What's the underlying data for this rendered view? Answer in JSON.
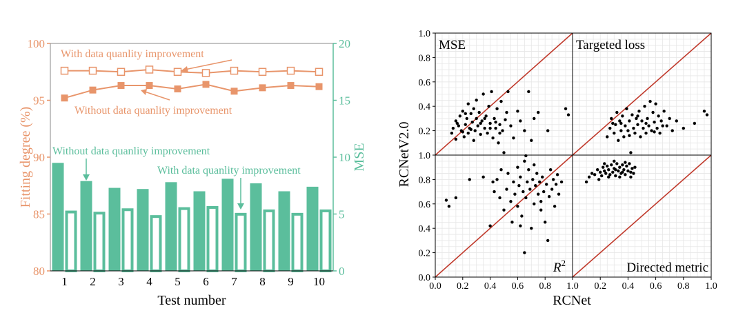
{
  "colors": {
    "orange": "#E8956B",
    "teal": "#5BBE9C",
    "black": "#000000",
    "red": "#C0392B",
    "grid": "#E6E6E6"
  },
  "chart_data": [
    {
      "type": "bar",
      "xlabel": "Test number",
      "ylabel_left": "Fitting degree (%)",
      "ylabel_right": "MSE",
      "categories": [
        "1",
        "2",
        "3",
        "4",
        "5",
        "6",
        "7",
        "8",
        "9",
        "10"
      ],
      "ylim_left": [
        80,
        100
      ],
      "ylim_right": [
        0,
        20
      ],
      "yticks_left": [
        "80",
        "85",
        "90",
        "95",
        "100"
      ],
      "yticks_right": [
        "0",
        "5",
        "10",
        "15",
        "20"
      ],
      "line_series": [
        {
          "name": "With data quanlity improvement",
          "axis": "left",
          "marker": "hollow-square",
          "values": [
            97.6,
            97.6,
            97.5,
            97.7,
            97.5,
            97.4,
            97.6,
            97.5,
            97.6,
            97.5
          ]
        },
        {
          "name": "Without data quanlity improvement",
          "axis": "left",
          "marker": "filled-square",
          "values": [
            95.2,
            95.9,
            96.3,
            96.3,
            96.0,
            96.4,
            95.8,
            96.1,
            96.3,
            96.2
          ]
        }
      ],
      "bar_series": [
        {
          "name": "Without data quanlity improvement",
          "axis": "right",
          "style": "filled",
          "values": [
            9.5,
            7.9,
            7.3,
            7.2,
            7.8,
            7.0,
            8.1,
            7.7,
            7.0,
            7.4
          ]
        },
        {
          "name": "With data quanlity improvement",
          "axis": "right",
          "style": "hollow",
          "values": [
            5.3,
            5.2,
            5.5,
            4.9,
            5.6,
            5.7,
            5.1,
            5.4,
            5.1,
            5.4
          ]
        }
      ],
      "annotations": {
        "line_with": "With data quanlity improvement",
        "line_without": "Without data quanlity improvement",
        "bar_without": "Without data quanlity improvement",
        "bar_with": "With data quanlity improvement"
      }
    },
    {
      "type": "scatter",
      "xlabel": "RCNet",
      "ylabel": "RCNetV2.0",
      "xlim": [
        0,
        1
      ],
      "ylim": [
        0,
        1
      ],
      "xticks": [
        "0.0",
        "0.2",
        "0.4",
        "0.6",
        "0.8",
        "1.0"
      ],
      "yticks": [
        "0.0",
        "0.2",
        "0.4",
        "0.6",
        "0.8",
        "1.0"
      ],
      "grid": true,
      "panels": [
        {
          "label": "MSE",
          "label_position": "top-left",
          "points": [
            [
              0.12,
              0.18
            ],
            [
              0.13,
              0.22
            ],
            [
              0.15,
              0.28
            ],
            [
              0.15,
              0.13
            ],
            [
              0.17,
              0.24
            ],
            [
              0.18,
              0.32
            ],
            [
              0.19,
              0.2
            ],
            [
              0.2,
              0.36
            ],
            [
              0.21,
              0.15
            ],
            [
              0.22,
              0.25
            ],
            [
              0.23,
              0.3
            ],
            [
              0.24,
              0.18
            ],
            [
              0.24,
              0.42
            ],
            [
              0.25,
              0.22
            ],
            [
              0.26,
              0.34
            ],
            [
              0.27,
              0.27
            ],
            [
              0.28,
              0.12
            ],
            [
              0.28,
              0.38
            ],
            [
              0.29,
              0.2
            ],
            [
              0.3,
              0.3
            ],
            [
              0.3,
              0.45
            ],
            [
              0.31,
              0.24
            ],
            [
              0.32,
              0.35
            ],
            [
              0.33,
              0.17
            ],
            [
              0.34,
              0.28
            ],
            [
              0.35,
              0.5
            ],
            [
              0.36,
              0.22
            ],
            [
              0.37,
              0.32
            ],
            [
              0.38,
              0.18
            ],
            [
              0.39,
              0.4
            ],
            [
              0.4,
              0.26
            ],
            [
              0.41,
              0.52
            ],
            [
              0.42,
              0.14
            ],
            [
              0.43,
              0.3
            ],
            [
              0.44,
              0.22
            ],
            [
              0.45,
              0.38
            ],
            [
              0.46,
              0.1
            ],
            [
              0.47,
              0.25
            ],
            [
              0.48,
              0.44
            ],
            [
              0.49,
              0.2
            ],
            [
              0.5,
              0.02
            ],
            [
              0.52,
              0.35
            ],
            [
              0.53,
              0.52
            ],
            [
              0.55,
              0.24
            ],
            [
              0.57,
              0.14
            ],
            [
              0.6,
              0.36
            ],
            [
              0.62,
              0.28
            ],
            [
              0.65,
              0.2
            ],
            [
              0.68,
              0.52
            ],
            [
              0.7,
              0.12
            ],
            [
              0.72,
              0.3
            ],
            [
              0.75,
              0.35
            ],
            [
              0.82,
              0.2
            ],
            [
              0.95,
              0.38
            ],
            [
              0.97,
              0.33
            ],
            [
              0.16,
              0.26
            ],
            [
              0.2,
              0.19
            ],
            [
              0.22,
              0.34
            ],
            [
              0.26,
              0.21
            ],
            [
              0.33,
              0.26
            ],
            [
              0.36,
              0.3
            ],
            [
              0.4,
              0.22
            ],
            [
              0.44,
              0.27
            ],
            [
              0.47,
              0.18
            ],
            [
              0.51,
              0.29
            ]
          ]
        },
        {
          "label": "Targeted loss",
          "label_position": "top-left",
          "points": [
            [
              0.25,
              0.15
            ],
            [
              0.27,
              0.22
            ],
            [
              0.28,
              0.3
            ],
            [
              0.3,
              0.18
            ],
            [
              0.31,
              0.25
            ],
            [
              0.32,
              0.35
            ],
            [
              0.33,
              0.12
            ],
            [
              0.34,
              0.28
            ],
            [
              0.35,
              0.2
            ],
            [
              0.36,
              0.32
            ],
            [
              0.37,
              0.15
            ],
            [
              0.38,
              0.24
            ],
            [
              0.39,
              0.38
            ],
            [
              0.4,
              0.2
            ],
            [
              0.41,
              0.28
            ],
            [
              0.42,
              0.02
            ],
            [
              0.43,
              0.33
            ],
            [
              0.44,
              0.22
            ],
            [
              0.45,
              0.18
            ],
            [
              0.46,
              0.3
            ],
            [
              0.47,
              0.25
            ],
            [
              0.48,
              0.36
            ],
            [
              0.49,
              0.15
            ],
            [
              0.5,
              0.28
            ],
            [
              0.51,
              0.22
            ],
            [
              0.52,
              0.4
            ],
            [
              0.53,
              0.18
            ],
            [
              0.54,
              0.3
            ],
            [
              0.55,
              0.24
            ],
            [
              0.56,
              0.44
            ],
            [
              0.57,
              0.2
            ],
            [
              0.58,
              0.35
            ],
            [
              0.59,
              0.27
            ],
            [
              0.6,
              0.42
            ],
            [
              0.61,
              0.22
            ],
            [
              0.62,
              0.32
            ],
            [
              0.63,
              0.18
            ],
            [
              0.64,
              0.28
            ],
            [
              0.66,
              0.36
            ],
            [
              0.68,
              0.24
            ],
            [
              0.7,
              0.3
            ],
            [
              0.72,
              0.2
            ],
            [
              0.75,
              0.28
            ],
            [
              0.8,
              0.22
            ],
            [
              0.88,
              0.26
            ],
            [
              0.95,
              0.36
            ],
            [
              0.97,
              0.33
            ],
            [
              0.29,
              0.26
            ],
            [
              0.35,
              0.26
            ],
            [
              0.41,
              0.16
            ],
            [
              0.47,
              0.32
            ],
            [
              0.53,
              0.26
            ],
            [
              0.59,
              0.19
            ],
            [
              0.65,
              0.24
            ]
          ]
        },
        {
          "label": "R2",
          "label_position": "bottom-right",
          "points": [
            [
              0.08,
              0.63
            ],
            [
              0.1,
              0.58
            ],
            [
              0.15,
              0.65
            ],
            [
              0.25,
              0.8
            ],
            [
              0.35,
              0.82
            ],
            [
              0.4,
              0.42
            ],
            [
              0.42,
              0.78
            ],
            [
              0.43,
              0.7
            ],
            [
              0.45,
              0.8
            ],
            [
              0.47,
              0.65
            ],
            [
              0.48,
              0.88
            ],
            [
              0.5,
              0.55
            ],
            [
              0.52,
              0.72
            ],
            [
              0.53,
              0.85
            ],
            [
              0.55,
              0.62
            ],
            [
              0.56,
              0.45
            ],
            [
              0.57,
              0.78
            ],
            [
              0.58,
              0.68
            ],
            [
              0.6,
              0.9
            ],
            [
              0.6,
              0.58
            ],
            [
              0.61,
              0.75
            ],
            [
              0.62,
              0.82
            ],
            [
              0.63,
              0.5
            ],
            [
              0.64,
              0.7
            ],
            [
              0.65,
              0.95
            ],
            [
              0.65,
              0.2
            ],
            [
              0.66,
              0.65
            ],
            [
              0.67,
              0.78
            ],
            [
              0.68,
              0.88
            ],
            [
              0.69,
              0.72
            ],
            [
              0.7,
              0.4
            ],
            [
              0.71,
              0.8
            ],
            [
              0.72,
              0.6
            ],
            [
              0.73,
              0.75
            ],
            [
              0.74,
              0.85
            ],
            [
              0.75,
              0.68
            ],
            [
              0.76,
              0.78
            ],
            [
              0.77,
              0.55
            ],
            [
              0.78,
              0.82
            ],
            [
              0.79,
              0.7
            ],
            [
              0.8,
              0.45
            ],
            [
              0.81,
              0.76
            ],
            [
              0.82,
              0.3
            ],
            [
              0.83,
              0.66
            ],
            [
              0.84,
              0.88
            ],
            [
              0.85,
              0.72
            ],
            [
              0.86,
              0.8
            ],
            [
              0.87,
              0.58
            ],
            [
              0.88,
              0.76
            ],
            [
              0.89,
              0.84
            ],
            [
              0.9,
              0.68
            ],
            [
              0.92,
              0.78
            ],
            [
              0.66,
              1.02
            ],
            [
              0.62,
              0.42
            ],
            [
              0.72,
              0.92
            ],
            [
              0.77,
              0.62
            ]
          ]
        },
        {
          "label": "Directed metric",
          "label_position": "bottom-right",
          "points": [
            [
              0.1,
              0.78
            ],
            [
              0.12,
              0.82
            ],
            [
              0.14,
              0.85
            ],
            [
              0.16,
              0.84
            ],
            [
              0.18,
              0.88
            ],
            [
              0.2,
              0.86
            ],
            [
              0.21,
              0.83
            ],
            [
              0.22,
              0.9
            ],
            [
              0.23,
              0.87
            ],
            [
              0.24,
              0.85
            ],
            [
              0.25,
              0.91
            ],
            [
              0.26,
              0.88
            ],
            [
              0.27,
              0.84
            ],
            [
              0.28,
              0.92
            ],
            [
              0.29,
              0.86
            ],
            [
              0.3,
              0.89
            ],
            [
              0.31,
              0.83
            ],
            [
              0.32,
              0.93
            ],
            [
              0.33,
              0.87
            ],
            [
              0.34,
              0.9
            ],
            [
              0.35,
              0.85
            ],
            [
              0.36,
              0.92
            ],
            [
              0.37,
              0.88
            ],
            [
              0.38,
              0.84
            ],
            [
              0.39,
              0.91
            ],
            [
              0.4,
              0.87
            ],
            [
              0.41,
              0.93
            ],
            [
              0.42,
              0.86
            ],
            [
              0.43,
              0.89
            ],
            [
              0.44,
              0.85
            ],
            [
              0.45,
              0.9
            ],
            [
              0.26,
              0.82
            ],
            [
              0.3,
              0.95
            ],
            [
              0.34,
              0.82
            ],
            [
              0.38,
              0.94
            ],
            [
              0.42,
              0.82
            ],
            [
              0.19,
              0.8
            ],
            [
              0.23,
              0.93
            ],
            [
              0.31,
              0.88
            ],
            [
              0.36,
              0.86
            ]
          ]
        }
      ]
    }
  ]
}
